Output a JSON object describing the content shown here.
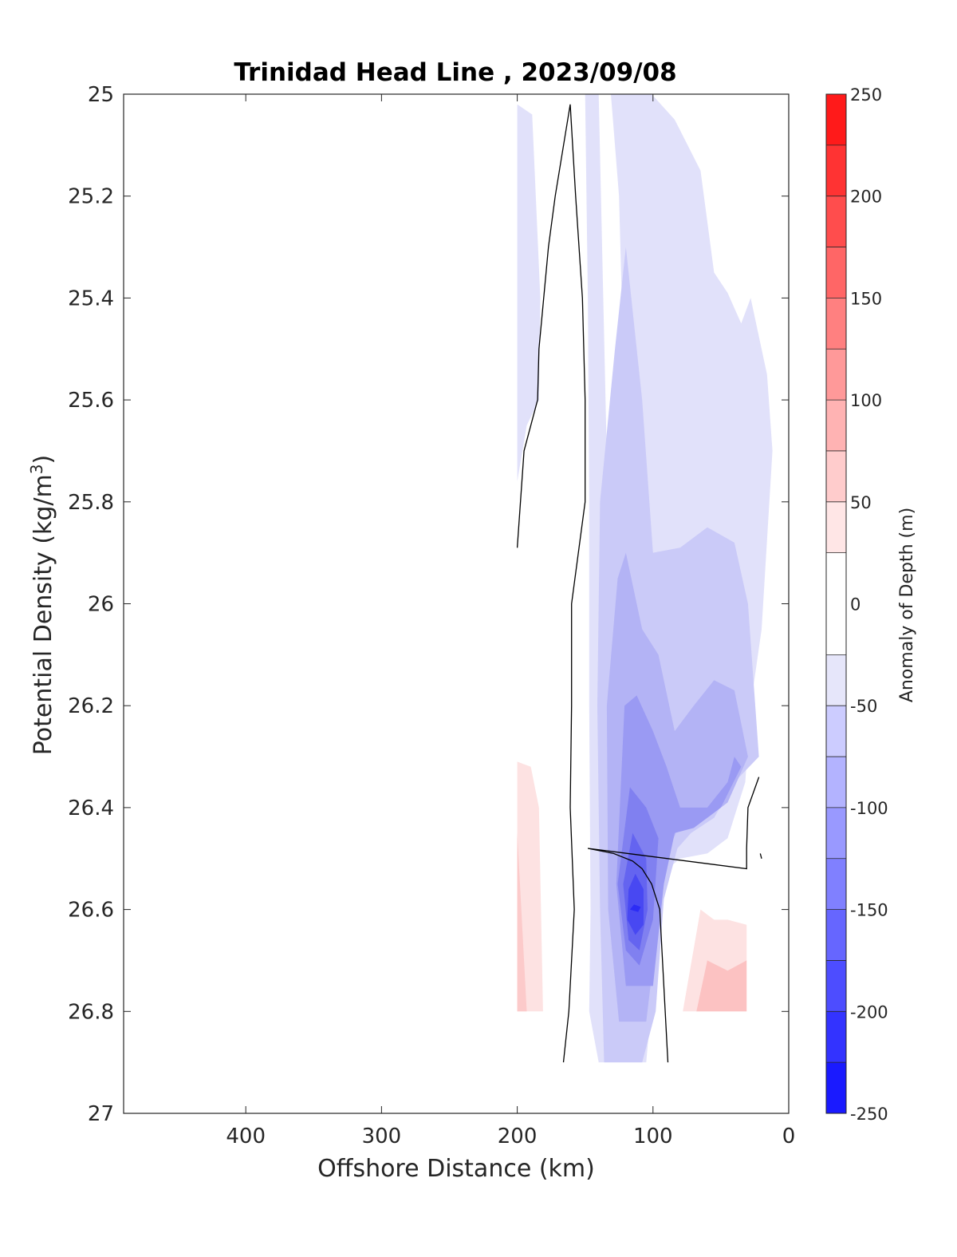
{
  "chart_data": {
    "type": "contour",
    "title": "Trinidad Head Line , 2023/09/08",
    "xlabel": "Offshore Distance (km)",
    "ylabel_main": "Potential Density (kg/m",
    "ylabel_sup": "3",
    "ylabel_close": ")",
    "colorbar_label": "Anomaly of Depth (m)",
    "x_reversed": true,
    "y_reversed": true,
    "xlim": [
      0,
      490
    ],
    "ylim": [
      25,
      27
    ],
    "xticks": [
      400,
      300,
      200,
      100,
      0
    ],
    "xtick_labels": [
      "400",
      "300",
      "200",
      "100",
      "0"
    ],
    "yticks": [
      25,
      25.2,
      25.4,
      25.6,
      25.8,
      26,
      26.2,
      26.4,
      26.6,
      26.8,
      27
    ],
    "ytick_labels": [
      "25",
      "25.2",
      "25.4",
      "25.6",
      "25.8",
      "26",
      "26.2",
      "26.4",
      "26.6",
      "26.8",
      "27"
    ],
    "colorbar": {
      "range": [
        -250,
        250
      ],
      "ticks": [
        250,
        200,
        150,
        100,
        50,
        0,
        -50,
        -100,
        -150,
        -200,
        -250
      ],
      "tick_labels": [
        "250",
        "200",
        "150",
        "100",
        "50",
        "0",
        "-50",
        "-100",
        "-150",
        "-200",
        "-250"
      ],
      "levels": [
        -250,
        -225,
        -200,
        -175,
        -150,
        -125,
        -100,
        -75,
        -50,
        -25,
        25,
        50,
        75,
        100,
        125,
        150,
        175,
        200,
        225,
        250
      ],
      "colors": [
        "#0000ff",
        "#1a1aff",
        "#3333ff",
        "#4d4dff",
        "#6666ff",
        "#8080ff",
        "#9999ff",
        "#b3b3ff",
        "#ccccff",
        "#e6e6fa",
        "#ffffff",
        "#ffe6e6",
        "#ffcccc",
        "#ffb3b3",
        "#ff9999",
        "#ff8080",
        "#ff6666",
        "#ff4d4d",
        "#ff3333",
        "#ff1a1a",
        "#ff0000"
      ]
    },
    "fills": [
      {
        "level": -25,
        "color": "#e1e1fa",
        "points": [
          [
            200,
            25.02
          ],
          [
            189,
            25.04
          ],
          [
            183,
            25.4
          ],
          [
            184,
            25.6
          ],
          [
            193,
            25.65
          ],
          [
            200,
            25.76
          ]
        ]
      },
      {
        "level": -25,
        "color": "#e1e1fa",
        "points": [
          [
            140,
            25
          ],
          [
            131,
            25
          ],
          [
            125,
            25.2
          ],
          [
            121,
            25.6
          ],
          [
            118,
            26
          ],
          [
            118,
            26.4
          ],
          [
            120,
            26.8
          ],
          [
            125,
            26.9
          ],
          [
            105,
            26.9
          ],
          [
            100,
            26.75
          ],
          [
            95,
            26.6
          ],
          [
            89,
            26.52
          ],
          [
            80,
            26.5
          ],
          [
            60,
            26.49
          ],
          [
            45,
            26.46
          ],
          [
            32,
            26.35
          ],
          [
            28,
            26.2
          ],
          [
            20,
            26.05
          ],
          [
            12,
            25.7
          ],
          [
            16,
            25.55
          ],
          [
            28,
            25.4
          ],
          [
            35,
            25.45
          ],
          [
            45,
            25.39
          ],
          [
            55,
            25.35
          ],
          [
            65,
            25.15
          ],
          [
            84,
            25.05
          ],
          [
            101,
            25
          ],
          [
            112,
            25
          ],
          [
            150,
            25
          ],
          [
            148,
            25.4
          ],
          [
            147,
            25.8
          ],
          [
            147,
            26.2
          ],
          [
            146,
            26.6
          ],
          [
            147,
            26.8
          ],
          [
            140,
            26.9
          ],
          [
            124,
            26.9
          ],
          [
            140,
            25
          ]
        ]
      },
      {
        "level": -50,
        "color": "#cacaf8",
        "points": [
          [
            128,
            25.5
          ],
          [
            120,
            25.3
          ],
          [
            108,
            25.6
          ],
          [
            100,
            25.9
          ],
          [
            80,
            25.89
          ],
          [
            60,
            25.85
          ],
          [
            40,
            25.88
          ],
          [
            30,
            26.0
          ],
          [
            22,
            26.3
          ],
          [
            40,
            26.35
          ],
          [
            55,
            26.42
          ],
          [
            72,
            26.45
          ],
          [
            82,
            26.48
          ],
          [
            92,
            26.58
          ],
          [
            98,
            26.8
          ],
          [
            108,
            26.9
          ],
          [
            136,
            26.9
          ],
          [
            139,
            26.6
          ],
          [
            141,
            26.2
          ],
          [
            139,
            25.8
          ]
        ]
      },
      {
        "level": -75,
        "color": "#b3b3f5",
        "points": [
          [
            126,
            25.95
          ],
          [
            120,
            25.9
          ],
          [
            108,
            26.05
          ],
          [
            96,
            26.1
          ],
          [
            84,
            26.25
          ],
          [
            70,
            26.2
          ],
          [
            55,
            26.15
          ],
          [
            40,
            26.17
          ],
          [
            30,
            26.3
          ],
          [
            45,
            26.39
          ],
          [
            60,
            26.42
          ],
          [
            80,
            26.43
          ],
          [
            88,
            26.48
          ],
          [
            96,
            26.62
          ],
          [
            105,
            26.82
          ],
          [
            125,
            26.82
          ],
          [
            133,
            26.6
          ],
          [
            134,
            26.2
          ]
        ]
      },
      {
        "level": -100,
        "color": "#9a9af3",
        "points": [
          [
            121,
            26.2
          ],
          [
            112,
            26.18
          ],
          [
            100,
            26.25
          ],
          [
            90,
            26.32
          ],
          [
            80,
            26.4
          ],
          [
            60,
            26.4
          ],
          [
            45,
            26.35
          ],
          [
            40,
            26.3
          ],
          [
            35,
            26.32
          ],
          [
            50,
            26.4
          ],
          [
            70,
            26.44
          ],
          [
            84,
            26.45
          ],
          [
            92,
            26.55
          ],
          [
            100,
            26.75
          ],
          [
            120,
            26.75
          ],
          [
            127,
            26.55
          ]
        ]
      },
      {
        "level": -125,
        "color": "#8080f0",
        "points": [
          [
            117,
            26.36
          ],
          [
            105,
            26.4
          ],
          [
            96,
            26.46
          ],
          [
            100,
            26.62
          ],
          [
            110,
            26.71
          ],
          [
            120,
            26.68
          ],
          [
            126,
            26.55
          ]
        ]
      },
      {
        "level": -150,
        "color": "#6464f0",
        "points": [
          [
            115,
            26.45
          ],
          [
            105,
            26.5
          ],
          [
            104,
            26.6
          ],
          [
            110,
            26.68
          ],
          [
            118,
            26.66
          ],
          [
            122,
            26.55
          ]
        ]
      },
      {
        "level": -175,
        "color": "#4848f2",
        "points": [
          [
            113,
            26.53
          ],
          [
            107,
            26.56
          ],
          [
            107,
            26.63
          ],
          [
            113,
            26.65
          ],
          [
            119,
            26.62
          ],
          [
            118,
            26.56
          ]
        ]
      },
      {
        "level": -200,
        "color": "#2c2cf5",
        "points": [
          [
            114,
            26.59
          ],
          [
            109,
            26.595
          ],
          [
            111,
            26.605
          ],
          [
            117,
            26.6
          ]
        ]
      },
      {
        "level": 25,
        "color": "#fde2e2",
        "points": [
          [
            200,
            26.31
          ],
          [
            190,
            26.32
          ],
          [
            184,
            26.4
          ],
          [
            181,
            26.8
          ],
          [
            200,
            26.8
          ]
        ]
      },
      {
        "level": 50,
        "color": "#fccaca",
        "points": [
          [
            200,
            26.45
          ],
          [
            193,
            26.8
          ],
          [
            200,
            26.8
          ]
        ]
      },
      {
        "level": 25,
        "color": "#fde2e2",
        "points": [
          [
            78,
            26.8
          ],
          [
            65,
            26.6
          ],
          [
            55,
            26.62
          ],
          [
            45,
            26.62
          ],
          [
            31,
            26.63
          ],
          [
            31,
            26.8
          ]
        ]
      },
      {
        "level": 50,
        "color": "#fcc2c2",
        "points": [
          [
            68,
            26.8
          ],
          [
            60,
            26.7
          ],
          [
            45,
            26.72
          ],
          [
            31,
            26.7
          ],
          [
            31,
            26.8
          ]
        ]
      }
    ],
    "contour_lines": [
      {
        "level": 0,
        "points": [
          [
            200,
            25.89
          ],
          [
            195,
            25.7
          ],
          [
            185,
            25.6
          ],
          [
            184,
            25.5
          ],
          [
            177,
            25.3
          ],
          [
            172,
            25.2
          ],
          [
            161,
            25.02
          ],
          [
            157,
            25.2
          ],
          [
            152,
            25.4
          ],
          [
            150,
            25.6
          ],
          [
            150,
            25.8
          ],
          [
            160,
            26.0
          ],
          [
            160,
            26.2
          ],
          [
            161,
            26.4
          ],
          [
            158,
            26.6
          ],
          [
            162,
            26.8
          ],
          [
            166,
            26.9
          ]
        ]
      },
      {
        "level": 0,
        "points": [
          [
            89,
            26.9
          ],
          [
            93,
            26.7
          ],
          [
            95,
            26.6
          ],
          [
            101,
            26.55
          ],
          [
            108,
            26.52
          ],
          [
            115,
            26.505
          ],
          [
            129,
            26.49
          ],
          [
            148,
            26.48
          ],
          [
            31,
            26.52
          ],
          [
            31,
            26.48
          ],
          [
            30,
            26.4
          ],
          [
            22,
            26.34
          ]
        ]
      },
      {
        "level": 0,
        "points": [
          [
            21,
            26.49
          ],
          [
            20,
            26.5
          ]
        ]
      }
    ]
  }
}
